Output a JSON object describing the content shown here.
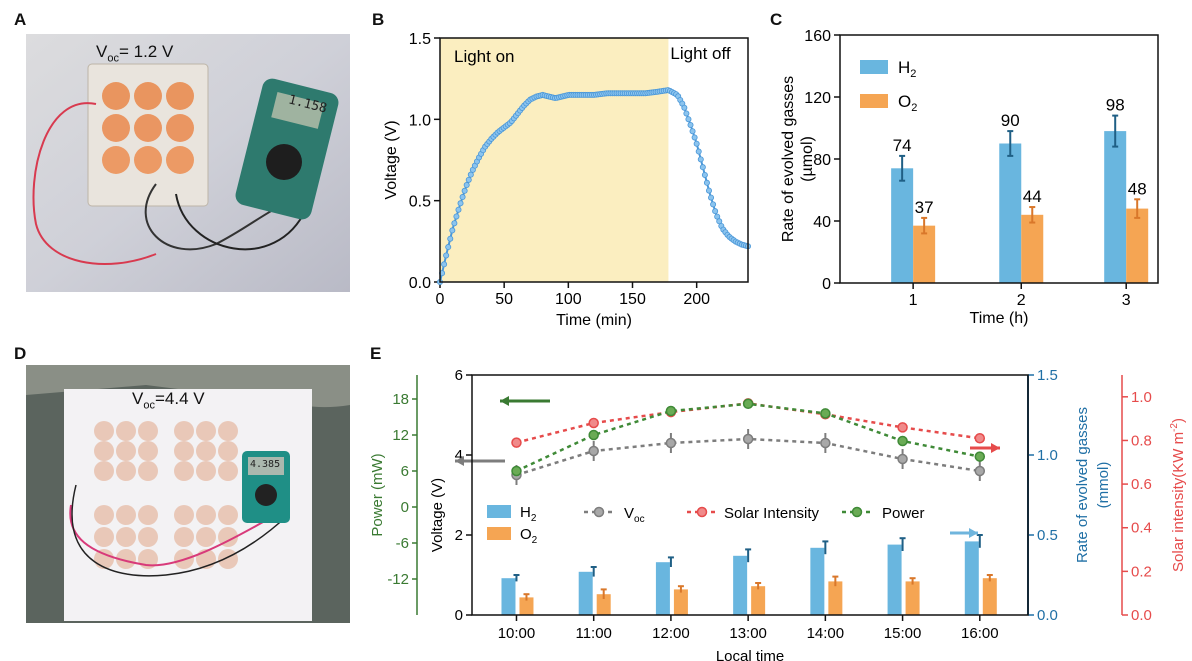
{
  "colors": {
    "h2": "#69b6df",
    "o2": "#f5a553",
    "voc": "#7d7d7d",
    "solar": "#e64b4b",
    "power": "#3f8a37",
    "rate_axis": "#1f6fa5",
    "solar_axis": "#e64b4b",
    "power_axis": "#3a7a32",
    "light_on_bg": "#fbeec0",
    "line_b": "#4a97d8"
  },
  "panels": {
    "A": {
      "letter": "A",
      "voc_label": "V",
      "voc_sub": "oc",
      "voc_value": "= 1.2 V",
      "meter_reading": "1.158"
    },
    "D": {
      "letter": "D",
      "voc_label": "V",
      "voc_sub": "oc",
      "voc_value": "=4.4 V",
      "meter_reading": "4.385"
    },
    "B": {
      "letter": "B"
    },
    "C": {
      "letter": "C"
    },
    "E": {
      "letter": "E"
    }
  },
  "chart_data": [
    {
      "id": "B",
      "type": "line",
      "xlabel": "Time (min)",
      "ylabel": "Voltage (V)",
      "xlim": [
        0,
        240
      ],
      "ylim": [
        0,
        1.5
      ],
      "xticks": [
        "0",
        "50",
        "100",
        "150",
        "200"
      ],
      "yticks": [
        "0.0",
        "0.5",
        "1.0",
        "1.5"
      ],
      "region_labels": [
        "Light on",
        "Light off"
      ],
      "light_on_until": 178,
      "x": [
        0,
        5,
        10,
        15,
        20,
        25,
        30,
        35,
        40,
        45,
        50,
        55,
        60,
        65,
        70,
        75,
        80,
        85,
        90,
        95,
        100,
        110,
        120,
        130,
        140,
        150,
        160,
        170,
        178,
        185,
        190,
        195,
        200,
        205,
        210,
        215,
        220,
        225,
        230,
        235,
        240
      ],
      "y": [
        0.0,
        0.17,
        0.33,
        0.46,
        0.58,
        0.68,
        0.76,
        0.83,
        0.88,
        0.92,
        0.95,
        0.98,
        1.03,
        1.08,
        1.12,
        1.14,
        1.15,
        1.14,
        1.13,
        1.14,
        1.15,
        1.15,
        1.15,
        1.16,
        1.16,
        1.16,
        1.16,
        1.17,
        1.18,
        1.15,
        1.08,
        0.97,
        0.85,
        0.7,
        0.55,
        0.42,
        0.33,
        0.28,
        0.25,
        0.23,
        0.22
      ]
    },
    {
      "id": "C",
      "type": "bar",
      "xlabel": "Time (h)",
      "ylabel_line1": "Rate of evolved gasses",
      "ylabel_line2": "(µmol)",
      "categories": [
        "1",
        "2",
        "3"
      ],
      "ylim": [
        0,
        160
      ],
      "yticks": [
        "0",
        "40",
        "80",
        "120",
        "160"
      ],
      "series": [
        {
          "name": "H",
          "sub": "2",
          "values": [
            74,
            90,
            98
          ],
          "labels": [
            "74",
            "90",
            "98"
          ],
          "errors": [
            8,
            8,
            10
          ]
        },
        {
          "name": "O",
          "sub": "2",
          "values": [
            37,
            44,
            48
          ],
          "labels": [
            "37",
            "44",
            "48"
          ],
          "errors": [
            5,
            5,
            6
          ]
        }
      ]
    },
    {
      "id": "E",
      "type": "bar",
      "xlabel": "Local time",
      "categories": [
        "10:00",
        "11:00",
        "12:00",
        "13:00",
        "14:00",
        "15:00",
        "16:00"
      ],
      "left_axis": {
        "label": "Voltage (V)",
        "ylim": [
          0,
          6
        ],
        "ticks": [
          "0",
          "2",
          "4",
          "6"
        ]
      },
      "power_axis": {
        "label": "Power (mW)",
        "ylim": [
          -18,
          22
        ],
        "ticks": [
          "-12",
          "-6",
          "0",
          "6",
          "12",
          "18"
        ]
      },
      "rate_axis": {
        "label_line1": "Rate of evolved gasses",
        "label_line2": "(mmol)",
        "ylim": [
          0,
          1.5
        ],
        "ticks": [
          "0.0",
          "0.5",
          "1.0",
          "1.5"
        ]
      },
      "solar_axis": {
        "label": "Solar intensity(KW m",
        "label_sup": "-2",
        "label_end": ")",
        "ylim": [
          0,
          1.1
        ],
        "ticks": [
          "0.0",
          "0.2",
          "0.4",
          "0.6",
          "0.8",
          "1.0"
        ]
      },
      "legend": {
        "h2": "H",
        "h2_sub": "2",
        "o2": "O",
        "o2_sub": "2",
        "voc": "V",
        "voc_sub": "oc",
        "solar": "Solar Intensity",
        "power": "Power"
      },
      "series": [
        {
          "name": "H2",
          "axis": "rate",
          "values": [
            0.23,
            0.27,
            0.33,
            0.37,
            0.42,
            0.44,
            0.46
          ],
          "errors": [
            0.02,
            0.03,
            0.03,
            0.04,
            0.04,
            0.04,
            0.04
          ]
        },
        {
          "name": "O2",
          "axis": "rate",
          "values": [
            0.11,
            0.13,
            0.16,
            0.18,
            0.21,
            0.21,
            0.23
          ],
          "errors": [
            0.02,
            0.03,
            0.02,
            0.02,
            0.03,
            0.02,
            0.02
          ]
        },
        {
          "name": "Voc",
          "axis": "voltage",
          "values": [
            3.5,
            4.1,
            4.3,
            4.4,
            4.3,
            3.9,
            3.6
          ],
          "errors": [
            0.25,
            0.25,
            0.25,
            0.25,
            0.25,
            0.25,
            0.25
          ]
        },
        {
          "name": "Solar Intensity",
          "axis": "solar",
          "values": [
            0.79,
            0.88,
            0.93,
            0.97,
            0.92,
            0.86,
            0.81
          ]
        },
        {
          "name": "Power",
          "axis": "power",
          "values": [
            6.0,
            12.0,
            16.0,
            17.2,
            15.6,
            11.0,
            8.4
          ]
        }
      ]
    }
  ]
}
